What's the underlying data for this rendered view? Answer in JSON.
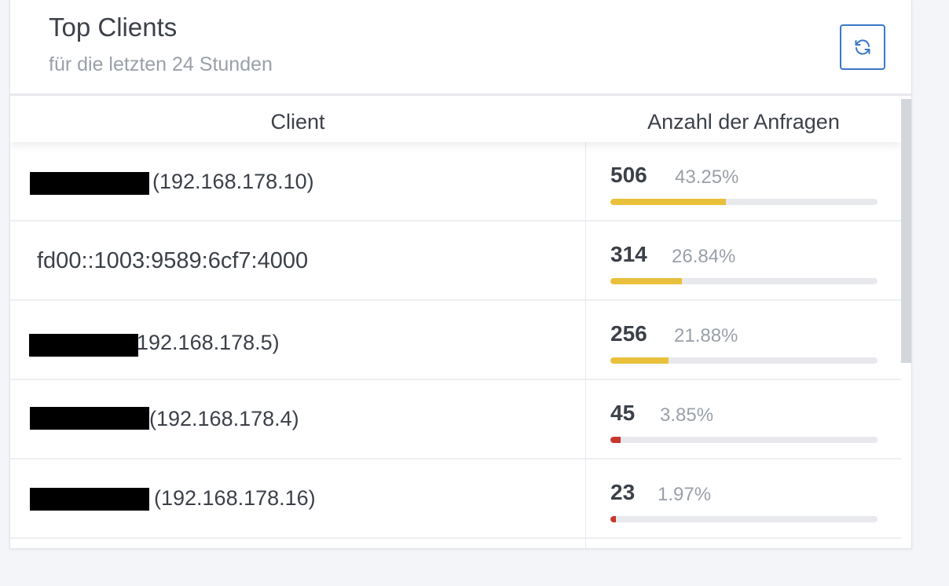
{
  "header": {
    "title": "Top Clients",
    "subtitle": "für die letzten 24 Stunden",
    "refresh_icon": "refresh-icon"
  },
  "table": {
    "columns": [
      "Client",
      "Anzahl der Anfragen"
    ],
    "rows": [
      {
        "client": "(192.168.178.10)",
        "redacted": true,
        "count": "506",
        "percent": "43.25%",
        "fraction": 0.4325,
        "bar_color": "#e9c03b"
      },
      {
        "client": "fd00::1003:9589:6cf7:4000",
        "redacted": false,
        "count": "314",
        "percent": "26.84%",
        "fraction": 0.2684,
        "bar_color": "#e9c03b"
      },
      {
        "client": "192.168.178.5)",
        "redacted": true,
        "count": "256",
        "percent": "21.88%",
        "fraction": 0.2188,
        "bar_color": "#e9c03b"
      },
      {
        "client": "(192.168.178.4)",
        "redacted": true,
        "count": "45",
        "percent": "3.85%",
        "fraction": 0.0385,
        "bar_color": "#c8372d"
      },
      {
        "client": "(192.168.178.16)",
        "redacted": true,
        "count": "23",
        "percent": "1.97%",
        "fraction": 0.0197,
        "bar_color": "#c8372d"
      }
    ]
  },
  "colors": {
    "accent": "#3a78c8",
    "warning_bar": "#e9c03b",
    "danger_bar": "#c8372d"
  }
}
